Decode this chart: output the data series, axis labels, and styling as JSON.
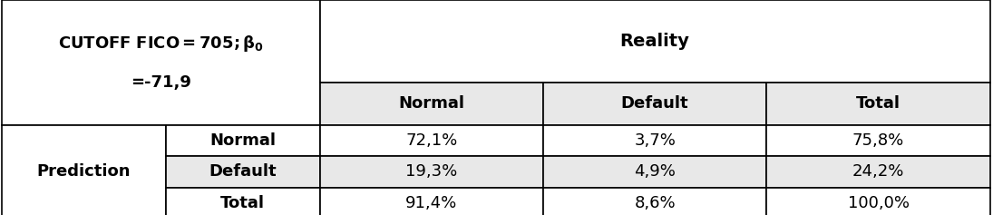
{
  "reality_header": "Reality",
  "col_headers": [
    "Normal",
    "Default",
    "Total"
  ],
  "row_label_outer": "Prediction",
  "row_labels": [
    "Normal",
    "Default",
    "Total"
  ],
  "data": [
    [
      "72,1%",
      "3,7%",
      "75,8%"
    ],
    [
      "19,3%",
      "4,9%",
      "24,2%"
    ],
    [
      "91,4%",
      "8,6%",
      "100,0%"
    ]
  ],
  "bg_light": "#e8e8e8",
  "bg_white": "#ffffff",
  "border_color": "#000000",
  "text_color": "#000000",
  "figsize": [
    10.95,
    2.37
  ],
  "dpi": 100,
  "cutoff_line1": "CUTOFF FICO=705; ",
  "cutoff_beta": "β₀",
  "cutoff_line2": "=-71,9",
  "fs_header": 13,
  "fs_data": 13,
  "lw": 1.2
}
